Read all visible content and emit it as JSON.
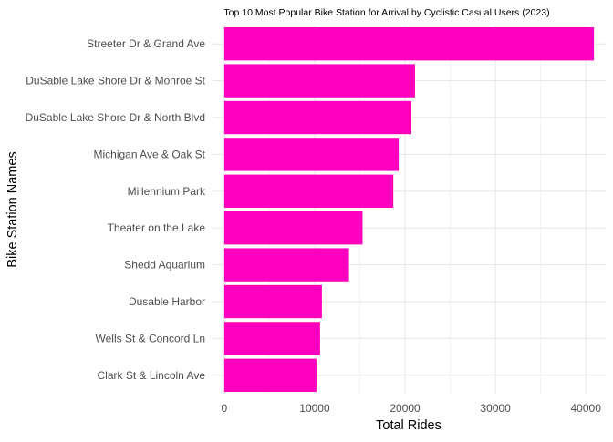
{
  "chart_data": {
    "type": "bar",
    "orientation": "horizontal",
    "title": "Top 10 Most Popular Bike Station for Arrival by Cyclistic Casual Users (2023)",
    "xlabel": "Total Rides",
    "ylabel": "Bike Station Names",
    "categories": [
      "Streeter Dr & Grand Ave",
      "DuSable Lake Shore Dr & Monroe St",
      "DuSable Lake Shore Dr & North Blvd",
      "Michigan Ave & Oak St",
      "Millennium Park",
      "Theater on the Lake",
      "Shedd Aquarium",
      "Dusable Harbor",
      "Wells St & Concord Ln",
      "Clark St & Lincoln Ave"
    ],
    "values": [
      40900,
      21100,
      20700,
      19300,
      18700,
      15300,
      13800,
      10800,
      10600,
      10200
    ],
    "xlim": [
      -1300,
      42200
    ],
    "xticks": [
      0,
      10000,
      20000,
      30000,
      40000
    ],
    "xtick_labels": [
      "0",
      "10000",
      "20000",
      "30000",
      "40000"
    ],
    "bar_color": "#ff00bf",
    "grid": true,
    "theme": "minimal",
    "legend": "none"
  }
}
